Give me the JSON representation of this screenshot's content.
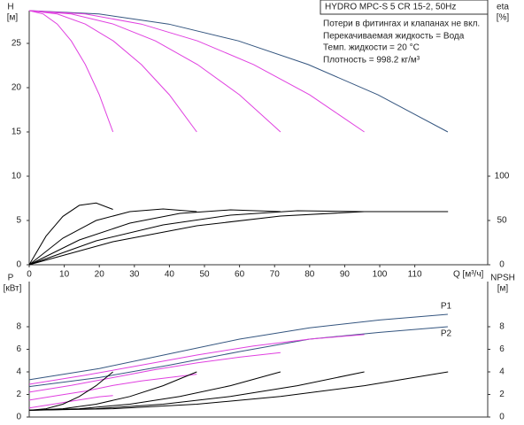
{
  "chart_data": [
    {
      "type": "line",
      "title": "HYDRO MPC-S 5 CR 15-2, 50Hz",
      "annotations": [
        "Потери в фитингах и клапанах не вкл.",
        "Перекачиваемая жидкость = Вода",
        "Темп. жидкости = 20 °C",
        "Плотность = 998.2 кг/м³"
      ],
      "ylabel": "H",
      "ylabel_unit": "[м]",
      "y2label": "eta",
      "y2label_unit": "[%]",
      "xlabel": "Q [м³/ч]",
      "xlim": [
        0,
        130.8
      ],
      "xticks": [
        0,
        10,
        20,
        30,
        40,
        50,
        60,
        70,
        80,
        90,
        100,
        110
      ],
      "ylim": [
        0,
        28.7
      ],
      "yticks": [
        0,
        5,
        10,
        15,
        20,
        25
      ],
      "y2lim": [
        0,
        287
      ],
      "y2ticks": [
        0,
        50,
        100
      ],
      "series": [
        {
          "color": "#34557f",
          "x": [
            0,
            19.9,
            39.8,
            59.7,
            79.6,
            99.5,
            119.4
          ],
          "values": [
            28.7,
            28.32,
            27.18,
            25.28,
            22.61,
            19.19,
            15.0
          ]
        },
        {
          "color": "#e040e0",
          "x": [
            0,
            4,
            8,
            12,
            16,
            20,
            23.9
          ],
          "values": [
            28.7,
            28.32,
            27.18,
            25.28,
            22.61,
            19.19,
            15.0
          ]
        },
        {
          "color": "#e040e0",
          "x": [
            0,
            8,
            16,
            24,
            32,
            40,
            47.8
          ],
          "values": [
            28.7,
            28.32,
            27.18,
            25.28,
            22.61,
            19.19,
            15.0
          ]
        },
        {
          "color": "#e040e0",
          "x": [
            0,
            12,
            24,
            36,
            48,
            60,
            71.7
          ],
          "values": [
            28.7,
            28.32,
            27.18,
            25.28,
            22.61,
            19.19,
            15.0
          ]
        },
        {
          "color": "#e040e0",
          "x": [
            0,
            16,
            32,
            48,
            64,
            80,
            95.6
          ],
          "values": [
            28.7,
            28.32,
            27.18,
            25.28,
            22.61,
            19.19,
            15.0
          ]
        },
        {
          "color": "#000000",
          "axis": "y2",
          "x": [
            0,
            4.8,
            9.6,
            14.3,
            19.1,
            23.9
          ],
          "values": [
            0,
            32.3,
            54.6,
            67.1,
            69.7,
            62.5
          ]
        },
        {
          "color": "#000000",
          "axis": "y2",
          "x": [
            0,
            9.6,
            19.1,
            28.7,
            38.2,
            47.8
          ],
          "values": [
            0,
            30,
            50,
            60,
            63,
            60
          ]
        },
        {
          "color": "#000000",
          "axis": "y2",
          "x": [
            0,
            14.3,
            28.7,
            43,
            57.4,
            71.7
          ],
          "values": [
            0,
            28,
            47,
            58,
            62,
            60
          ]
        },
        {
          "color": "#000000",
          "axis": "y2",
          "x": [
            0,
            19.1,
            38.2,
            57.4,
            76.5,
            95.6
          ],
          "values": [
            0,
            27,
            45,
            56,
            61,
            60
          ]
        },
        {
          "color": "#000000",
          "axis": "y2",
          "x": [
            0,
            23.9,
            47.8,
            71.7,
            95.6,
            119.5
          ],
          "values": [
            0,
            26,
            44,
            55,
            60,
            60
          ]
        }
      ]
    },
    {
      "type": "line",
      "ylabel": "P",
      "ylabel_unit": "[кВт]",
      "y2label": "NPSH",
      "y2label_unit": "[м]",
      "xlim": [
        0,
        130.8
      ],
      "ylim": [
        0,
        12
      ],
      "yticks": [
        0,
        2,
        4,
        6,
        8
      ],
      "y2lim": [
        0,
        12
      ],
      "y2ticks": [
        0,
        2,
        4,
        6,
        8
      ],
      "series": [
        {
          "name": "P1",
          "color": "#34557f",
          "x": [
            0,
            20,
            40,
            60,
            80,
            100,
            119.4
          ],
          "values": [
            3.3,
            4.3,
            5.6,
            6.9,
            7.9,
            8.6,
            9.1
          ]
        },
        {
          "name": "P2",
          "color": "#34557f",
          "x": [
            0,
            20,
            40,
            60,
            80,
            100,
            119.4
          ],
          "values": [
            2.7,
            3.5,
            4.6,
            5.8,
            6.9,
            7.5,
            8.0
          ]
        },
        {
          "color": "#e040e0",
          "x": [
            0,
            16,
            32,
            48,
            64,
            80,
            95.6
          ],
          "values": [
            2.9,
            3.7,
            4.6,
            5.5,
            6.3,
            6.9,
            7.3
          ]
        },
        {
          "color": "#e040e0",
          "x": [
            0,
            12,
            24,
            36,
            48,
            60,
            71.7
          ],
          "values": [
            2.2,
            2.8,
            3.5,
            4.2,
            4.8,
            5.3,
            5.7
          ]
        },
        {
          "color": "#e040e0",
          "x": [
            0,
            8,
            16,
            24,
            32,
            40,
            47.8
          ],
          "values": [
            1.5,
            1.9,
            2.3,
            2.8,
            3.2,
            3.5,
            3.8
          ]
        },
        {
          "color": "#e040e0",
          "x": [
            0,
            4,
            8,
            12,
            16,
            20,
            23.9
          ],
          "values": [
            0.8,
            1.0,
            1.2,
            1.4,
            1.6,
            1.8,
            1.9
          ]
        },
        {
          "color": "#000000",
          "axis": "y2",
          "x": [
            0,
            4.8,
            9.6,
            14.3,
            19.1,
            23.9
          ],
          "values": [
            0.6,
            0.74,
            1.14,
            1.82,
            2.78,
            4.0
          ]
        },
        {
          "color": "#000000",
          "axis": "y2",
          "x": [
            0,
            9.6,
            19.1,
            28.7,
            38.2,
            47.8
          ],
          "values": [
            0.6,
            0.74,
            1.14,
            1.82,
            2.78,
            4.0
          ]
        },
        {
          "color": "#000000",
          "axis": "y2",
          "x": [
            0,
            14.3,
            28.7,
            43,
            57.4,
            71.7
          ],
          "values": [
            0.6,
            0.74,
            1.14,
            1.82,
            2.78,
            4.0
          ]
        },
        {
          "color": "#000000",
          "axis": "y2",
          "x": [
            0,
            19.1,
            38.2,
            57.4,
            76.5,
            95.6
          ],
          "values": [
            0.6,
            0.74,
            1.14,
            1.82,
            2.78,
            4.0
          ]
        },
        {
          "color": "#000000",
          "axis": "y2",
          "x": [
            0,
            23.9,
            47.8,
            71.7,
            95.6,
            119.5
          ],
          "values": [
            0.6,
            0.74,
            1.14,
            1.82,
            2.78,
            4.0
          ]
        }
      ]
    }
  ]
}
